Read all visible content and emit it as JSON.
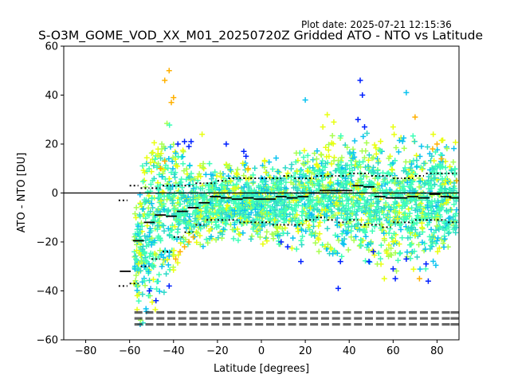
{
  "plot_date": "Plot date: 2025-07-21 12:15:36",
  "chart_data": {
    "type": "scatter",
    "title": "S-O3M_GOME_VOD_XX_M01_20250720Z Gridded ATO - NTO vs Latitude",
    "xlabel": "Latitude [degrees]",
    "ylabel": "ATO - NTO [DU]",
    "xlim": [
      -90,
      90
    ],
    "ylim": [
      -60,
      60
    ],
    "xticks": [
      -80,
      -60,
      -40,
      -20,
      0,
      20,
      40,
      60,
      80
    ],
    "yticks": [
      -60,
      -40,
      -20,
      0,
      20,
      40,
      60
    ],
    "xtick_labels": [
      "−80",
      "−60",
      "−40",
      "−20",
      "0",
      "20",
      "40",
      "60",
      "80"
    ],
    "ytick_labels": [
      "−60",
      "−40",
      "−20",
      "0",
      "20",
      "40",
      "60"
    ],
    "grid": false,
    "zero_line": 0,
    "marker": "+",
    "colors": {
      "dense": "#3effb8",
      "teal": "#2fd9c8",
      "cyan": "#0bc3f0",
      "lime": "#a8ff50",
      "yellow": "#e8ff10",
      "orange": "#ffb000",
      "blue": "#0020ff",
      "medianline": "#000000",
      "zeroline": "#000000"
    },
    "bin_medians": [
      {
        "lat": -62,
        "median": -32
      },
      {
        "lat": -56,
        "median": -19.5
      },
      {
        "lat": -51,
        "median": -12
      },
      {
        "lat": -46,
        "median": -9
      },
      {
        "lat": -41,
        "median": -9.5
      },
      {
        "lat": -36,
        "median": -7.5
      },
      {
        "lat": -31,
        "median": -6
      },
      {
        "lat": -26,
        "median": -4
      },
      {
        "lat": -21,
        "median": -1.5
      },
      {
        "lat": -16,
        "median": -2
      },
      {
        "lat": -11,
        "median": -2.5
      },
      {
        "lat": -6,
        "median": -2
      },
      {
        "lat": -1,
        "median": -2.5
      },
      {
        "lat": 4,
        "median": -2.5
      },
      {
        "lat": 9,
        "median": -1.5
      },
      {
        "lat": 14,
        "median": -2
      },
      {
        "lat": 19,
        "median": -1.5
      },
      {
        "lat": 24,
        "median": 0
      },
      {
        "lat": 29,
        "median": 1
      },
      {
        "lat": 34,
        "median": 1
      },
      {
        "lat": 39,
        "median": 1
      },
      {
        "lat": 44,
        "median": 3
      },
      {
        "lat": 49,
        "median": 2.5
      },
      {
        "lat": 54,
        "median": -1.5
      },
      {
        "lat": 59,
        "median": -2
      },
      {
        "lat": 64,
        "median": -2
      },
      {
        "lat": 69,
        "median": -1.5
      },
      {
        "lat": 74,
        "median": -2
      },
      {
        "lat": 79,
        "median": -0.5
      },
      {
        "lat": 84,
        "median": -1.5
      },
      {
        "lat": 88,
        "median": -2
      }
    ],
    "bin_spread": [
      {
        "lat": -63,
        "lo": -38,
        "hi": -3
      },
      {
        "lat": -58,
        "lo": -37,
        "hi": 3
      },
      {
        "lat": -53,
        "lo": -30,
        "hi": 2
      },
      {
        "lat": -48,
        "lo": -27,
        "hi": 2
      },
      {
        "lat": -43,
        "lo": -24,
        "hi": 3
      },
      {
        "lat": -38,
        "lo": -18,
        "hi": 3
      },
      {
        "lat": -33,
        "lo": -16,
        "hi": 3
      },
      {
        "lat": -28,
        "lo": -13,
        "hi": 4
      },
      {
        "lat": -23,
        "lo": -11,
        "hi": 4
      },
      {
        "lat": -18,
        "lo": -11,
        "hi": 5
      },
      {
        "lat": -13,
        "lo": -11,
        "hi": 6
      },
      {
        "lat": -8,
        "lo": -12,
        "hi": 6
      },
      {
        "lat": -3,
        "lo": -12,
        "hi": 6
      },
      {
        "lat": 2,
        "lo": -12,
        "hi": 6
      },
      {
        "lat": 7,
        "lo": -13,
        "hi": 6
      },
      {
        "lat": 12,
        "lo": -13,
        "hi": 7
      },
      {
        "lat": 17,
        "lo": -13,
        "hi": 6
      },
      {
        "lat": 22,
        "lo": -11,
        "hi": 6
      },
      {
        "lat": 27,
        "lo": -10,
        "hi": 7
      },
      {
        "lat": 32,
        "lo": -11,
        "hi": 7
      },
      {
        "lat": 37,
        "lo": -12,
        "hi": 7
      },
      {
        "lat": 42,
        "lo": -11,
        "hi": 8
      },
      {
        "lat": 47,
        "lo": -13,
        "hi": 8
      },
      {
        "lat": 52,
        "lo": -13,
        "hi": 7
      },
      {
        "lat": 57,
        "lo": -14,
        "hi": 7
      },
      {
        "lat": 62,
        "lo": -12,
        "hi": 6
      },
      {
        "lat": 67,
        "lo": -12,
        "hi": 6
      },
      {
        "lat": 72,
        "lo": -11,
        "hi": 7
      },
      {
        "lat": 77,
        "lo": -11,
        "hi": 8
      },
      {
        "lat": 82,
        "lo": -11,
        "hi": 8
      },
      {
        "lat": 87,
        "lo": -12,
        "hi": 8
      }
    ],
    "scatter_envelope": [
      {
        "lat": -58,
        "lo": -44,
        "hi": -5
      },
      {
        "lat": -54,
        "lo": -58,
        "hi": 12
      },
      {
        "lat": -50,
        "lo": -52,
        "hi": 28
      },
      {
        "lat": -46,
        "lo": -45,
        "hi": 33
      },
      {
        "lat": -42,
        "lo": -38,
        "hi": 28
      },
      {
        "lat": -38,
        "lo": -30,
        "hi": 22
      },
      {
        "lat": -34,
        "lo": -26,
        "hi": 15
      },
      {
        "lat": -30,
        "lo": -24,
        "hi": 13
      },
      {
        "lat": -20,
        "lo": -22,
        "hi": 13
      },
      {
        "lat": -10,
        "lo": -20,
        "hi": 13
      },
      {
        "lat": 0,
        "lo": -21,
        "hi": 13
      },
      {
        "lat": 10,
        "lo": -22,
        "hi": 15
      },
      {
        "lat": 20,
        "lo": -24,
        "hi": 20
      },
      {
        "lat": 30,
        "lo": -26,
        "hi": 24
      },
      {
        "lat": 40,
        "lo": -28,
        "hi": 24
      },
      {
        "lat": 50,
        "lo": -30,
        "hi": 26
      },
      {
        "lat": 60,
        "lo": -32,
        "hi": 24
      },
      {
        "lat": 70,
        "lo": -32,
        "hi": 24
      },
      {
        "lat": 80,
        "lo": -30,
        "hi": 24
      },
      {
        "lat": 89,
        "lo": -28,
        "hi": 22
      }
    ],
    "highlights": [
      {
        "lat": -44,
        "value": 46,
        "color": "orange"
      },
      {
        "lat": -42,
        "value": 50,
        "color": "orange"
      },
      {
        "lat": -40,
        "value": 39,
        "color": "orange"
      },
      {
        "lat": -38,
        "value": 20,
        "color": "blue"
      },
      {
        "lat": -35,
        "value": 21,
        "color": "blue"
      },
      {
        "lat": -33,
        "value": 19,
        "color": "blue"
      },
      {
        "lat": -32,
        "value": 21,
        "color": "blue"
      },
      {
        "lat": -42,
        "value": -38,
        "color": "blue"
      },
      {
        "lat": -51,
        "value": -40,
        "color": "blue"
      },
      {
        "lat": -48,
        "value": -44,
        "color": "blue"
      },
      {
        "lat": -16,
        "value": 20,
        "color": "blue"
      },
      {
        "lat": -8,
        "value": 17,
        "color": "blue"
      },
      {
        "lat": -7,
        "value": 15,
        "color": "blue"
      },
      {
        "lat": 9,
        "value": -20,
        "color": "blue"
      },
      {
        "lat": 12,
        "value": -22,
        "color": "blue"
      },
      {
        "lat": 18,
        "value": -28,
        "color": "blue"
      },
      {
        "lat": 35,
        "value": -39,
        "color": "blue"
      },
      {
        "lat": 36,
        "value": -28,
        "color": "blue"
      },
      {
        "lat": 45,
        "value": 46,
        "color": "blue"
      },
      {
        "lat": 46,
        "value": 40,
        "color": "blue"
      },
      {
        "lat": 44,
        "value": 30,
        "color": "blue"
      },
      {
        "lat": 47,
        "value": 27,
        "color": "blue"
      },
      {
        "lat": 49,
        "value": -28,
        "color": "blue"
      },
      {
        "lat": 51,
        "value": -24,
        "color": "blue"
      },
      {
        "lat": 60,
        "value": -31,
        "color": "blue"
      },
      {
        "lat": 61,
        "value": -35,
        "color": "blue"
      },
      {
        "lat": 66,
        "value": -27,
        "color": "blue"
      },
      {
        "lat": 76,
        "value": -36,
        "color": "blue"
      },
      {
        "lat": 75,
        "value": -29,
        "color": "blue"
      },
      {
        "lat": 66,
        "value": 41,
        "color": "cyan"
      },
      {
        "lat": 30,
        "value": 32,
        "color": "yellow"
      },
      {
        "lat": 20,
        "value": 38,
        "color": "cyan"
      },
      {
        "lat": 80,
        "value": 20,
        "color": "orange"
      },
      {
        "lat": 82,
        "value": 14,
        "color": "orange"
      },
      {
        "lat": 78,
        "value": 18,
        "color": "orange"
      },
      {
        "lat": 89,
        "value": 5,
        "color": "orange"
      },
      {
        "lat": 70,
        "value": 31,
        "color": "orange"
      },
      {
        "lat": 72,
        "value": -35,
        "color": "orange"
      },
      {
        "lat": -37,
        "value": -24,
        "color": "orange"
      },
      {
        "lat": -35,
        "value": -22,
        "color": "orange"
      },
      {
        "lat": -33,
        "value": -20,
        "color": "orange"
      },
      {
        "lat": -31,
        "value": -18,
        "color": "orange"
      },
      {
        "lat": -39,
        "value": -27,
        "color": "orange"
      },
      {
        "lat": -46,
        "value": 10,
        "color": "orange"
      },
      {
        "lat": -44,
        "value": 13,
        "color": "orange"
      },
      {
        "lat": -41,
        "value": 37,
        "color": "orange"
      },
      {
        "lat": -27,
        "value": 24,
        "color": "yellow"
      },
      {
        "lat": -6,
        "value": 10,
        "color": "orange"
      },
      {
        "lat": 28,
        "value": 27,
        "color": "yellow"
      },
      {
        "lat": 33,
        "value": 29,
        "color": "yellow"
      },
      {
        "lat": 60,
        "value": 27,
        "color": "yellow"
      },
      {
        "lat": 56,
        "value": -35,
        "color": "yellow"
      },
      {
        "lat": -58,
        "value": -37,
        "color": "yellow"
      },
      {
        "lat": -55,
        "value": -52,
        "color": "lime"
      }
    ]
  }
}
